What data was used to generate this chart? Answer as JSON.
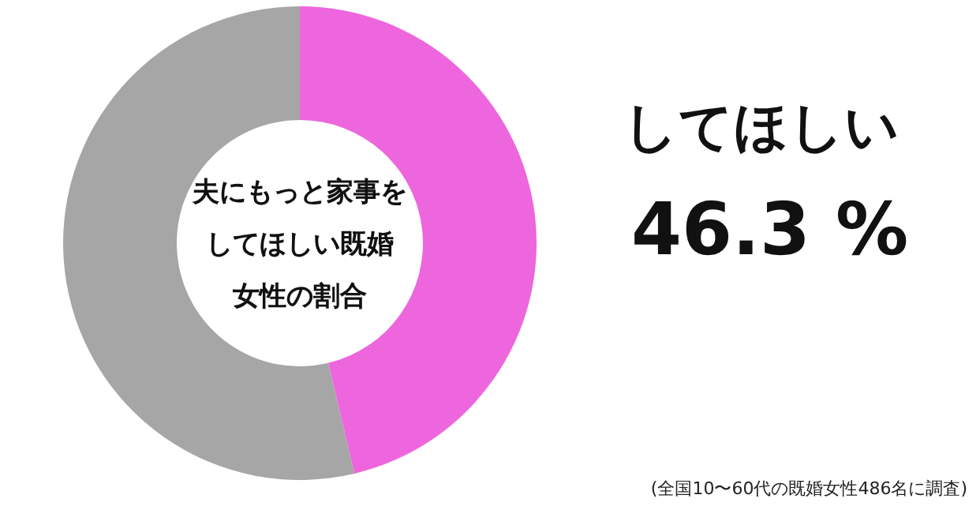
{
  "chart_data": {
    "type": "donut",
    "title": "夫にもっと家事をしてほしい既婚女性の割合",
    "categories": [
      "してほしい",
      null
    ],
    "values": [
      46.3,
      53.7
    ],
    "colors": [
      "#ee66dd",
      "#a6a6a6"
    ],
    "value_labels": [
      "46.3 %",
      null
    ],
    "annotations": [
      "(全国10〜60代の既婚女性486名に調査)"
    ]
  }
}
